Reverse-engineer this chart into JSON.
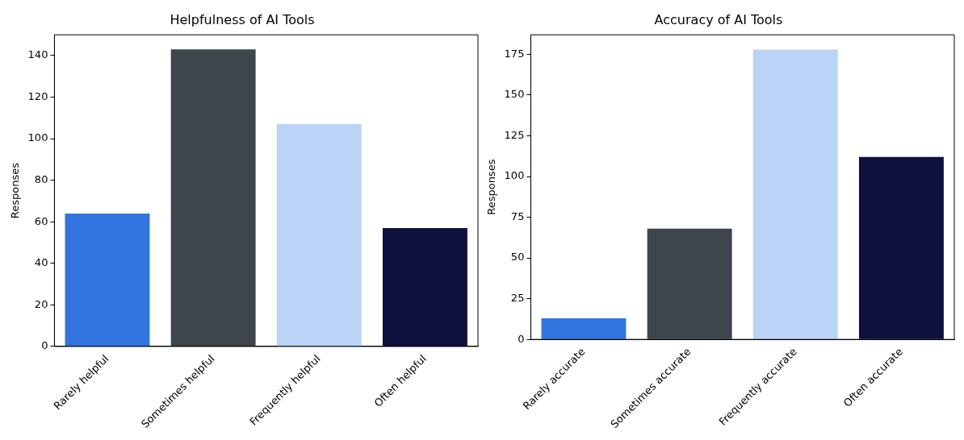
{
  "chart_data": [
    {
      "type": "bar",
      "title": "Helpfulness of AI Tools",
      "ylabel": "Responses",
      "categories": [
        "Rarely helpful",
        "Sometimes helpful",
        "Frequently helpful",
        "Often helpful"
      ],
      "values": [
        64,
        143,
        107,
        57
      ],
      "colors": [
        "#3274e0",
        "#3e454c",
        "#bad3f6",
        "#10103d"
      ],
      "ylim": [
        0,
        150
      ],
      "yticks": [
        0,
        20,
        40,
        60,
        80,
        100,
        120,
        140
      ],
      "grid": false,
      "legend": false
    },
    {
      "type": "bar",
      "title": "Accuracy of AI Tools",
      "ylabel": "Responses",
      "categories": [
        "Rarely accurate",
        "Sometimes accurate",
        "Frequently accurate",
        "Often accurate"
      ],
      "values": [
        13,
        68,
        178,
        112
      ],
      "colors": [
        "#3274e0",
        "#3e454c",
        "#bad3f6",
        "#10103d"
      ],
      "ylim": [
        0,
        187
      ],
      "yticks": [
        0,
        25,
        50,
        75,
        100,
        125,
        150,
        175
      ],
      "grid": false,
      "legend": false
    }
  ]
}
